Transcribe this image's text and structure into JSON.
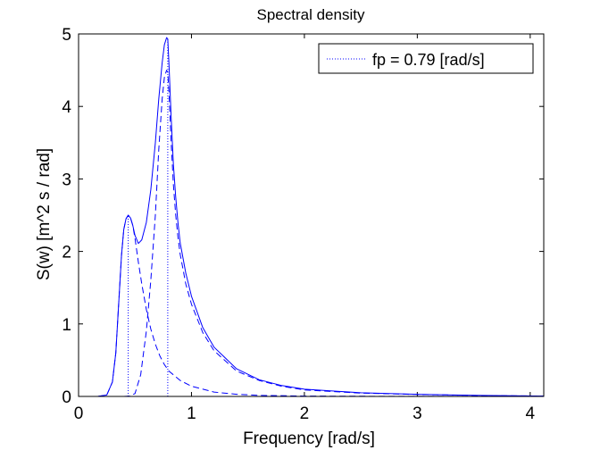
{
  "chart_data": {
    "type": "line",
    "title": "Spectral density",
    "xlabel": "Frequency [rad/s]",
    "ylabel": "S(w) [m^2 s / rad]",
    "xlim": [
      0,
      4.12
    ],
    "ylim": [
      0,
      5
    ],
    "x_ticks": [
      0,
      1,
      2,
      3,
      4
    ],
    "y_ticks": [
      0,
      1,
      2,
      3,
      4,
      5
    ],
    "grid": false,
    "legend": {
      "placement": "top-right",
      "entries": [
        "fp = 0.79 [rad/s]"
      ]
    },
    "color": "#0000ff",
    "series": [
      {
        "style": "solid",
        "x": [
          0.17,
          0.25,
          0.3,
          0.33,
          0.36,
          0.38,
          0.4,
          0.42,
          0.44,
          0.46,
          0.48,
          0.5,
          0.53,
          0.56,
          0.6,
          0.64,
          0.68,
          0.71,
          0.74,
          0.76,
          0.78,
          0.79,
          0.8,
          0.82,
          0.84,
          0.86,
          0.88,
          0.9,
          0.95,
          1.0,
          1.1,
          1.2,
          1.4,
          1.6,
          1.8,
          2.0,
          2.5,
          3.0,
          3.5,
          4.12
        ],
        "y": [
          0,
          0.02,
          0.2,
          0.6,
          1.4,
          1.95,
          2.3,
          2.45,
          2.5,
          2.46,
          2.36,
          2.22,
          2.11,
          2.16,
          2.4,
          2.85,
          3.5,
          4.1,
          4.6,
          4.85,
          4.95,
          4.93,
          4.6,
          3.85,
          3.2,
          2.75,
          2.4,
          2.12,
          1.7,
          1.38,
          0.95,
          0.68,
          0.38,
          0.23,
          0.15,
          0.1,
          0.05,
          0.03,
          0.015,
          0.005
        ]
      },
      {
        "style": "dashed",
        "x": [
          0.17,
          0.25,
          0.3,
          0.33,
          0.36,
          0.38,
          0.4,
          0.42,
          0.44,
          0.46,
          0.48,
          0.5,
          0.53,
          0.56,
          0.6,
          0.64,
          0.68,
          0.72,
          0.76,
          0.8,
          0.9,
          1.0,
          1.2,
          1.4,
          1.6,
          2.0,
          2.5,
          3.0,
          4.12
        ],
        "y": [
          0,
          0.02,
          0.2,
          0.6,
          1.4,
          1.95,
          2.3,
          2.45,
          2.5,
          2.46,
          2.36,
          2.18,
          1.85,
          1.55,
          1.2,
          0.93,
          0.72,
          0.56,
          0.44,
          0.35,
          0.22,
          0.14,
          0.06,
          0.03,
          0.015,
          0.005,
          0.002,
          0.001,
          0
        ]
      },
      {
        "style": "dashed",
        "x": [
          0.4,
          0.45,
          0.5,
          0.55,
          0.6,
          0.64,
          0.68,
          0.71,
          0.74,
          0.76,
          0.78,
          0.79,
          0.8,
          0.82,
          0.84,
          0.86,
          0.88,
          0.9,
          0.95,
          1.0,
          1.1,
          1.2,
          1.4,
          1.6,
          1.8,
          2.0,
          2.5,
          3.0,
          3.5,
          4.12
        ],
        "y": [
          0,
          0.005,
          0.04,
          0.3,
          0.9,
          1.6,
          2.5,
          3.4,
          4.1,
          4.4,
          4.5,
          4.47,
          4.2,
          3.5,
          2.92,
          2.5,
          2.2,
          1.96,
          1.55,
          1.27,
          0.88,
          0.63,
          0.35,
          0.22,
          0.14,
          0.09,
          0.045,
          0.027,
          0.014,
          0.005
        ]
      },
      {
        "style": "dotted",
        "x": [
          0.44,
          0.44
        ],
        "y": [
          0,
          2.5
        ]
      },
      {
        "style": "dotted",
        "x": [
          0.79,
          0.79
        ],
        "y": [
          0,
          4.95
        ]
      }
    ]
  }
}
